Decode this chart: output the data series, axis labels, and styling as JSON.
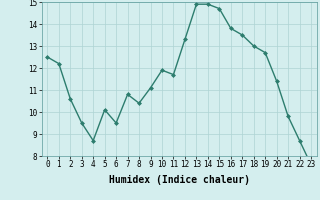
{
  "x": [
    0,
    1,
    2,
    3,
    4,
    5,
    6,
    7,
    8,
    9,
    10,
    11,
    12,
    13,
    14,
    15,
    16,
    17,
    18,
    19,
    20,
    21,
    22,
    23
  ],
  "y": [
    12.5,
    12.2,
    10.6,
    9.5,
    8.7,
    10.1,
    9.5,
    10.8,
    10.4,
    11.1,
    11.9,
    11.7,
    13.3,
    14.9,
    14.9,
    14.7,
    13.8,
    13.5,
    13.0,
    12.7,
    11.4,
    9.8,
    8.7,
    7.6
  ],
  "line_color": "#2d7d6e",
  "marker": "D",
  "marker_size": 2,
  "bg_color": "#d4eeee",
  "grid_color": "#aed4d4",
  "xlabel": "Humidex (Indice chaleur)",
  "ylim": [
    8,
    15
  ],
  "xlim": [
    -0.5,
    23.5
  ],
  "yticks": [
    8,
    9,
    10,
    11,
    12,
    13,
    14,
    15
  ],
  "xticks": [
    0,
    1,
    2,
    3,
    4,
    5,
    6,
    7,
    8,
    9,
    10,
    11,
    12,
    13,
    14,
    15,
    16,
    17,
    18,
    19,
    20,
    21,
    22,
    23
  ],
  "tick_fontsize": 5.5,
  "xlabel_fontsize": 7,
  "line_width": 1.0
}
